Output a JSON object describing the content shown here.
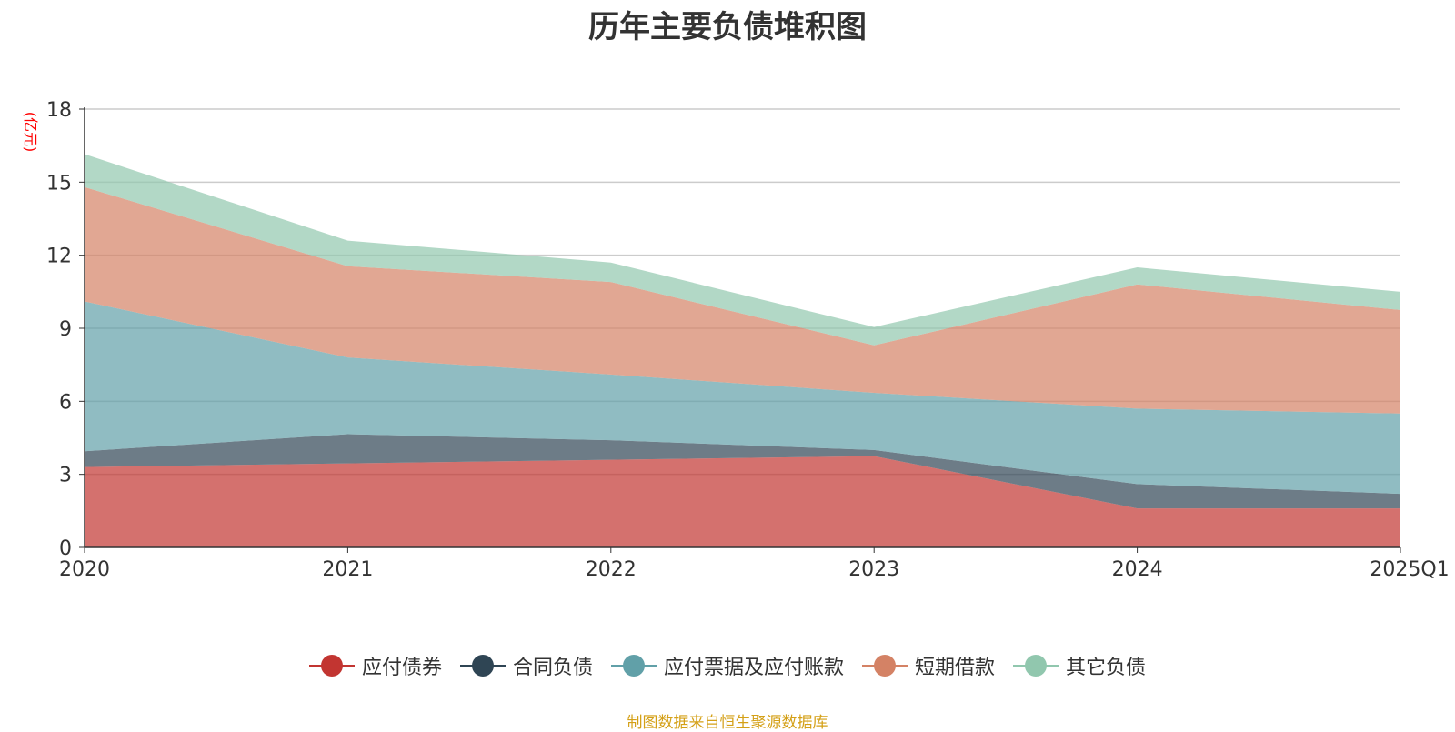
{
  "title": "历年主要负债堆积图",
  "unit_label": "(亿元)",
  "source": "制图数据来自恒生聚源数据库",
  "chart_data": {
    "type": "area",
    "stacked": true,
    "title": "历年主要负债堆积图",
    "ylabel": "(亿元)",
    "categories": [
      "2020",
      "2021",
      "2022",
      "2023",
      "2024",
      "2025Q1"
    ],
    "ylim": [
      0,
      18
    ],
    "yticks": [
      0,
      3,
      6,
      9,
      12,
      15,
      18
    ],
    "grid": true,
    "legend_position": "bottom",
    "series": [
      {
        "name": "应付债券",
        "color": "#c23531",
        "values": [
          3.3,
          3.45,
          3.6,
          3.75,
          1.6,
          1.6
        ]
      },
      {
        "name": "合同负债",
        "color": "#2f4554",
        "values": [
          0.65,
          1.2,
          0.8,
          0.25,
          1.0,
          0.6
        ]
      },
      {
        "name": "应付票据及应付账款",
        "color": "#61a0a8",
        "values": [
          6.15,
          3.15,
          2.7,
          2.35,
          3.1,
          3.3
        ]
      },
      {
        "name": "短期借款",
        "color": "#d48265",
        "values": [
          4.7,
          3.75,
          3.8,
          1.95,
          5.1,
          4.25
        ]
      },
      {
        "name": "其它负债",
        "color": "#91c7ae",
        "values": [
          1.35,
          1.05,
          0.8,
          0.75,
          0.7,
          0.75
        ]
      }
    ]
  }
}
